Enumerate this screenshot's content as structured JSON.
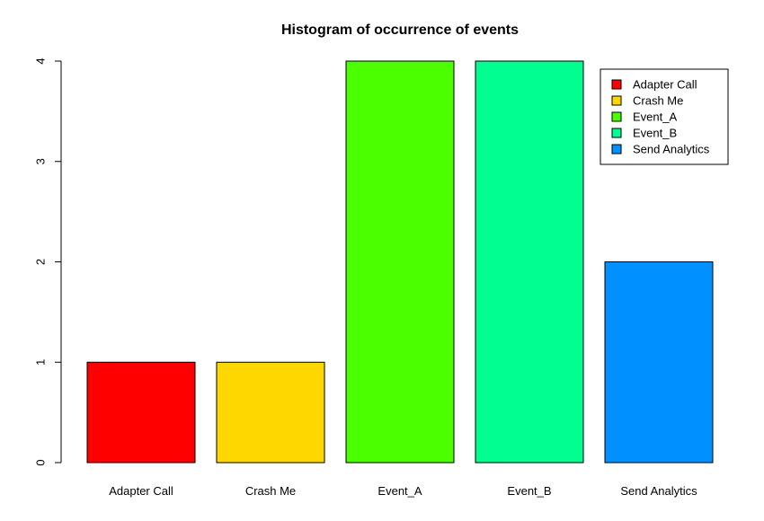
{
  "chart_data": {
    "type": "bar",
    "title": "Histogram of occurrence of events",
    "xlabel": "",
    "ylabel": "",
    "categories": [
      "Adapter Call",
      "Crash Me",
      "Event_A",
      "Event_B",
      "Send Analytics"
    ],
    "values": [
      1,
      1,
      4,
      4,
      2
    ],
    "colors": [
      "#ff0000",
      "#ffd700",
      "#4cff00",
      "#00ff90",
      "#0090ff"
    ],
    "ylim": [
      0,
      4
    ],
    "y_ticks": [
      0,
      1,
      2,
      3,
      4
    ],
    "grid": false,
    "legend": {
      "placement": "top-right",
      "entries": [
        "Adapter Call",
        "Crash Me",
        "Event_A",
        "Event_B",
        "Send Analytics"
      ]
    }
  }
}
